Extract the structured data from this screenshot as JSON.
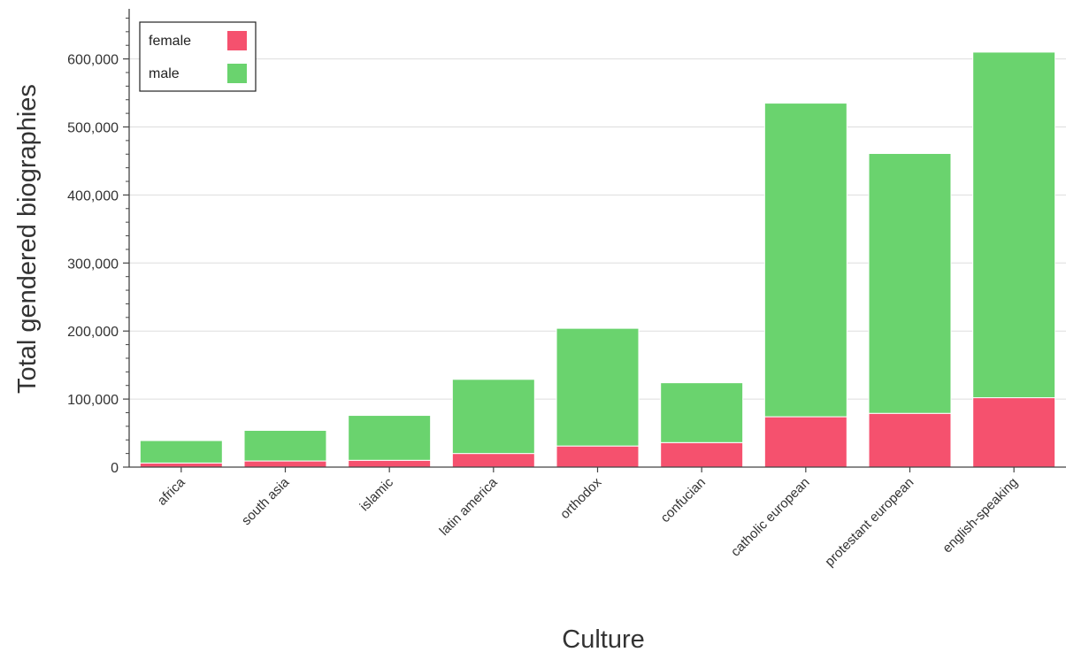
{
  "chart_data": {
    "type": "bar",
    "stacked": true,
    "categories": [
      "africa",
      "south asia",
      "islamic",
      "latin america",
      "orthodox",
      "confucian",
      "catholic european",
      "protestant european",
      "english-speaking"
    ],
    "series": [
      {
        "name": "female",
        "color": "#f5516e",
        "values": [
          6000,
          9000,
          10000,
          20000,
          31000,
          36000,
          74000,
          79000,
          102000
        ]
      },
      {
        "name": "male",
        "color": "#6ad36e",
        "values": [
          33000,
          45000,
          66000,
          109000,
          173000,
          88000,
          461000,
          382000,
          508000
        ]
      }
    ],
    "xlabel": "Culture",
    "ylabel": "Total gendered biographies",
    "ylim": [
      0,
      675000
    ],
    "yticks": [
      0,
      100000,
      200000,
      300000,
      400000,
      500000,
      600000
    ],
    "ytick_labels": [
      "0",
      "100,000",
      "200,000",
      "300,000",
      "400,000",
      "500,000",
      "600,000"
    ],
    "grid": true,
    "legend": {
      "position": "top-left"
    }
  }
}
